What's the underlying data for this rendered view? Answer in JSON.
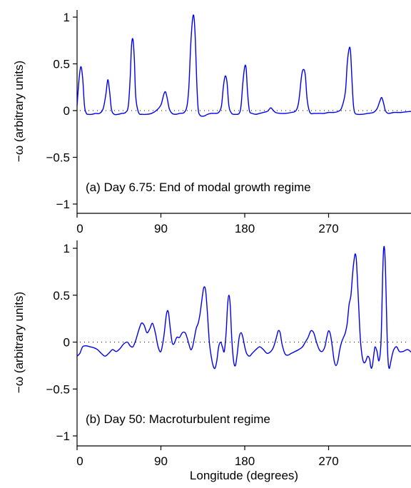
{
  "chart_data": [
    {
      "type": "line",
      "annotation": "(a) Day 6.75: End of modal growth regime",
      "ylabel": "−ω (arbitrary units)",
      "xlabel": "",
      "xlim": [
        0,
        360
      ],
      "ylim": [
        -1,
        1
      ],
      "xticks": [
        0,
        90,
        180,
        270
      ],
      "xtick_labels": [
        "0",
        "90",
        "180",
        "270"
      ],
      "yticks": [
        1,
        0.5,
        0,
        -0.5,
        -1
      ],
      "ytick_labels": [
        "1",
        "0.5",
        "0",
        "−0.5",
        "−1"
      ],
      "zero_line": "dotted",
      "series": [
        {
          "color": "#0000ee",
          "x": [
            0,
            2,
            4,
            6,
            8,
            10,
            12,
            16,
            20,
            24,
            28,
            31,
            33,
            35,
            37,
            40,
            44,
            48,
            52,
            55,
            57,
            58.5,
            60,
            61.5,
            63,
            66,
            70,
            75,
            80,
            85,
            90,
            93,
            95,
            97,
            99,
            102,
            106,
            110,
            115,
            118,
            120,
            122,
            124,
            125.5,
            127,
            128.5,
            130,
            132,
            136,
            140,
            144,
            148,
            152,
            155,
            157,
            159,
            161,
            163,
            166,
            170,
            174,
            176,
            178,
            180,
            181.5,
            183,
            185,
            188,
            192,
            196,
            200,
            204,
            206,
            208,
            210,
            213,
            218,
            224,
            230,
            235,
            238,
            241,
            243,
            245,
            247,
            250,
            255,
            260,
            265,
            270,
            275,
            280,
            284,
            288,
            290,
            292,
            293.5,
            295,
            296.5,
            298,
            301,
            306,
            312,
            318,
            322,
            325,
            327,
            329,
            331,
            334,
            340,
            348,
            356,
            360
          ],
          "y": [
            0.05,
            0.32,
            0.47,
            0.35,
            0.05,
            -0.03,
            -0.04,
            -0.04,
            -0.03,
            -0.03,
            0.02,
            0.18,
            0.33,
            0.2,
            0.01,
            -0.04,
            -0.04,
            -0.03,
            -0.02,
            0.05,
            0.35,
            0.7,
            0.76,
            0.55,
            0.15,
            -0.02,
            -0.04,
            -0.04,
            -0.03,
            0.0,
            0.06,
            0.17,
            0.2,
            0.12,
            0.02,
            -0.03,
            -0.04,
            -0.03,
            -0.02,
            0.05,
            0.25,
            0.7,
            0.98,
            1.0,
            0.75,
            0.3,
            0.02,
            -0.05,
            -0.06,
            -0.04,
            -0.03,
            -0.03,
            -0.02,
            0.05,
            0.25,
            0.37,
            0.3,
            0.05,
            -0.03,
            -0.04,
            -0.03,
            0.05,
            0.3,
            0.47,
            0.45,
            0.2,
            0.0,
            -0.03,
            -0.04,
            -0.03,
            -0.02,
            -0.01,
            0.01,
            0.03,
            0.01,
            -0.02,
            -0.03,
            -0.03,
            -0.02,
            0.0,
            0.1,
            0.37,
            0.44,
            0.38,
            0.12,
            -0.02,
            -0.03,
            -0.03,
            -0.03,
            -0.02,
            -0.02,
            -0.01,
            0.03,
            0.2,
            0.5,
            0.66,
            0.64,
            0.35,
            0.08,
            -0.02,
            -0.04,
            -0.04,
            -0.03,
            -0.02,
            0.02,
            0.1,
            0.14,
            0.08,
            0.0,
            -0.03,
            -0.02,
            -0.02,
            -0.01,
            -0.01
          ]
        }
      ]
    },
    {
      "type": "line",
      "annotation": "(b) Day 50: Macroturbulent regime",
      "ylabel": "−ω (arbitrary units)",
      "xlabel": "Longitude (degrees)",
      "xlim": [
        0,
        360
      ],
      "ylim": [
        -1,
        1
      ],
      "xticks": [
        0,
        90,
        180,
        270
      ],
      "xtick_labels": [
        "0",
        "90",
        "180",
        "270"
      ],
      "yticks": [
        1,
        0.5,
        0,
        -0.5,
        -1
      ],
      "ytick_labels": [
        "1",
        "0.5",
        "0",
        "−0.5",
        "−1"
      ],
      "zero_line": "dotted",
      "series": [
        {
          "color": "#0000ee",
          "x": [
            0,
            3,
            6,
            10,
            14,
            18,
            22,
            26,
            30,
            34,
            38,
            42,
            46,
            50,
            54,
            57,
            60,
            63,
            66,
            69,
            72,
            75,
            78,
            81,
            84,
            87,
            90,
            93,
            96,
            98,
            100,
            102,
            104,
            107,
            110,
            113,
            116,
            118,
            120,
            122,
            124,
            126,
            128,
            130,
            132,
            134,
            136,
            138,
            140,
            142,
            144,
            146,
            148,
            150,
            152,
            154,
            156,
            158,
            160,
            161.5,
            163,
            164.5,
            166,
            168,
            170,
            172,
            174,
            176,
            178,
            180,
            182,
            185,
            188,
            192,
            196,
            200,
            204,
            208,
            211,
            214,
            216,
            218,
            220,
            223,
            226,
            230,
            234,
            238,
            242,
            245,
            248,
            251,
            254,
            257,
            260,
            263,
            266,
            268,
            270,
            272,
            274,
            276,
            278,
            280,
            282,
            284,
            286,
            288,
            290,
            292,
            294,
            296,
            298,
            299,
            300,
            302,
            304,
            306,
            308,
            310,
            312,
            314,
            315,
            316,
            317,
            318,
            319,
            320,
            322,
            324,
            326,
            327,
            328,
            329,
            330,
            331,
            332,
            333,
            334,
            335,
            336,
            338,
            340,
            343,
            346,
            350,
            355,
            360
          ],
          "y": [
            -0.15,
            -0.12,
            -0.05,
            -0.04,
            -0.05,
            -0.06,
            -0.08,
            -0.12,
            -0.15,
            -0.12,
            -0.08,
            -0.1,
            -0.07,
            -0.02,
            0.0,
            -0.04,
            -0.05,
            0.02,
            0.12,
            0.2,
            0.18,
            0.1,
            0.14,
            0.2,
            0.1,
            -0.05,
            -0.1,
            0.05,
            0.3,
            0.32,
            0.15,
            0.0,
            -0.02,
            0.05,
            0.05,
            0.1,
            0.1,
            0.05,
            -0.02,
            -0.08,
            -0.05,
            0.05,
            0.15,
            0.2,
            0.3,
            0.45,
            0.58,
            0.55,
            0.3,
            0.0,
            -0.15,
            -0.25,
            -0.28,
            -0.2,
            -0.05,
            0.0,
            -0.05,
            -0.1,
            0.1,
            0.38,
            0.5,
            0.38,
            0.05,
            -0.2,
            -0.25,
            -0.12,
            0.05,
            0.1,
            0.05,
            -0.05,
            -0.12,
            -0.15,
            -0.12,
            -0.08,
            -0.05,
            -0.08,
            -0.12,
            -0.1,
            -0.05,
            0.05,
            0.12,
            0.1,
            -0.02,
            -0.12,
            -0.14,
            -0.12,
            -0.1,
            -0.08,
            -0.05,
            0.0,
            0.05,
            0.12,
            0.1,
            0.0,
            -0.08,
            -0.1,
            -0.05,
            0.05,
            0.12,
            0.08,
            -0.05,
            -0.2,
            -0.25,
            -0.2,
            -0.08,
            0.0,
            0.05,
            0.1,
            0.2,
            0.4,
            0.5,
            0.75,
            0.92,
            0.93,
            0.85,
            0.45,
            0.05,
            -0.15,
            -0.22,
            -0.2,
            -0.15,
            -0.18,
            -0.25,
            -0.28,
            -0.25,
            -0.18,
            -0.1,
            -0.05,
            -0.1,
            -0.2,
            -0.05,
            0.25,
            0.7,
            0.98,
            1.0,
            0.8,
            0.4,
            0.0,
            -0.22,
            -0.28,
            -0.25,
            -0.15,
            -0.08,
            -0.05,
            -0.1,
            -0.1,
            -0.08,
            -0.12
          ]
        }
      ]
    }
  ]
}
